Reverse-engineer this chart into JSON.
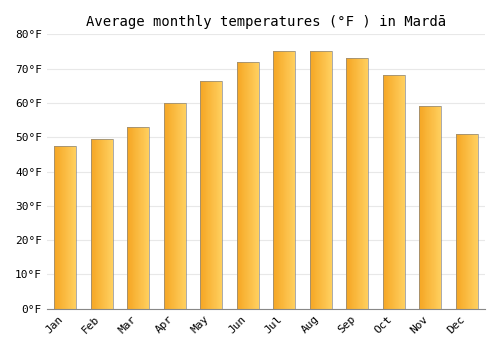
{
  "title": "Average monthly temperatures (°F ) in Mardā",
  "months": [
    "Jan",
    "Feb",
    "Mar",
    "Apr",
    "May",
    "Jun",
    "Jul",
    "Aug",
    "Sep",
    "Oct",
    "Nov",
    "Dec"
  ],
  "values": [
    47.5,
    49.5,
    53.0,
    60.0,
    66.5,
    72.0,
    75.0,
    75.0,
    73.0,
    68.0,
    59.0,
    51.0
  ],
  "bar_color_left": "#F5A623",
  "bar_color_right": "#FFD060",
  "ylim": [
    0,
    80
  ],
  "yticks": [
    0,
    10,
    20,
    30,
    40,
    50,
    60,
    70,
    80
  ],
  "ytick_labels": [
    "0°F",
    "10°F",
    "20°F",
    "30°F",
    "40°F",
    "50°F",
    "60°F",
    "70°F",
    "80°F"
  ],
  "background_color": "#ffffff",
  "grid_color": "#e8e8e8",
  "title_fontsize": 10,
  "tick_fontsize": 8,
  "font_family": "monospace",
  "bar_width": 0.6
}
